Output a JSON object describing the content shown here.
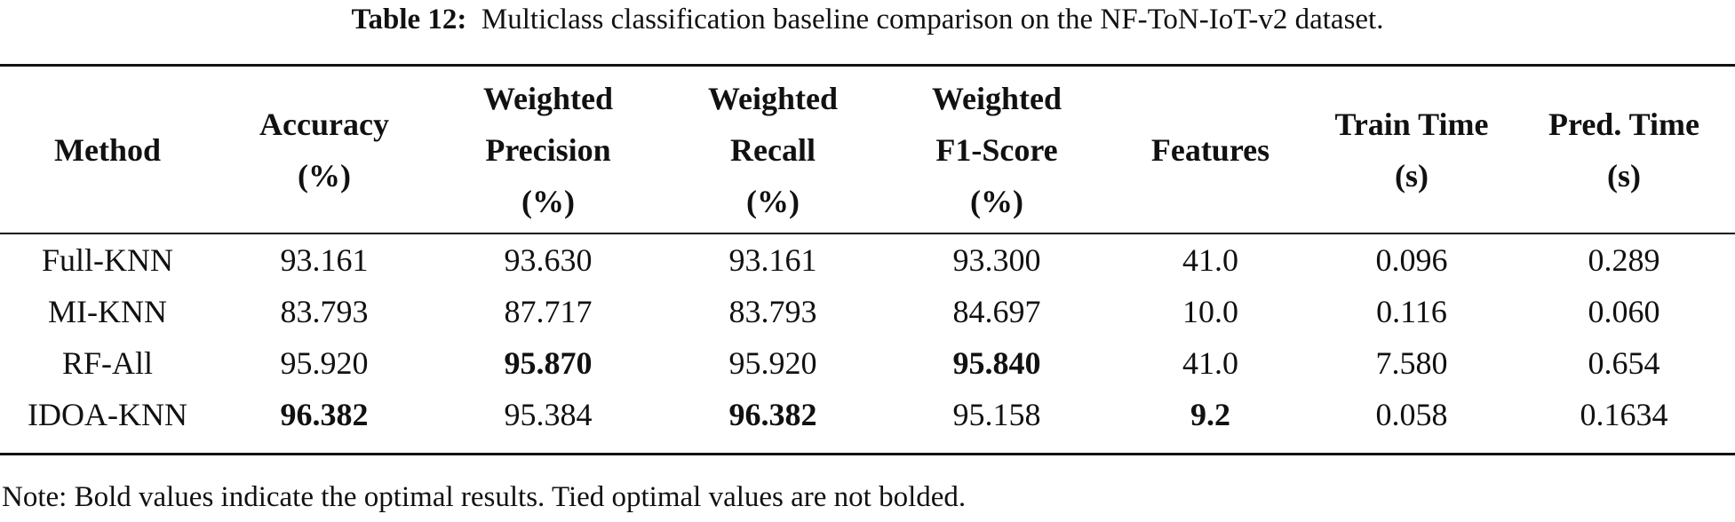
{
  "caption": {
    "label": "Table 12:",
    "text": "Multiclass classification baseline comparison on the NF-ToN-IoT-v2 dataset."
  },
  "table": {
    "headers": [
      [
        "Method"
      ],
      [
        "Accuracy",
        "(%)"
      ],
      [
        "Weighted",
        "Precision",
        "(%)"
      ],
      [
        "Weighted",
        "Recall",
        "(%)"
      ],
      [
        "Weighted",
        "F1-Score",
        "(%)"
      ],
      [
        "Features"
      ],
      [
        "Train Time",
        "(s)"
      ],
      [
        "Pred. Time",
        "(s)"
      ]
    ],
    "rows": [
      [
        "Full-KNN",
        "93.161",
        "93.630",
        "93.161",
        "93.300",
        "41.0",
        "0.096",
        "0.289"
      ],
      [
        "MI-KNN",
        "83.793",
        "87.717",
        "83.793",
        "84.697",
        "10.0",
        "0.116",
        "0.060"
      ],
      [
        "RF-All",
        "95.920",
        "95.870",
        "95.920",
        "95.840",
        "41.0",
        "7.580",
        "0.654"
      ],
      [
        "IDOA-KNN",
        "96.382",
        "95.384",
        "96.382",
        "95.158",
        "9.2",
        "0.058",
        "0.1634"
      ]
    ],
    "bold_cells": [
      [
        2,
        2
      ],
      [
        2,
        4
      ],
      [
        3,
        1
      ],
      [
        3,
        3
      ],
      [
        3,
        5
      ]
    ]
  },
  "note": "Note: Bold values indicate the optimal results. Tied optimal values are not bolded."
}
